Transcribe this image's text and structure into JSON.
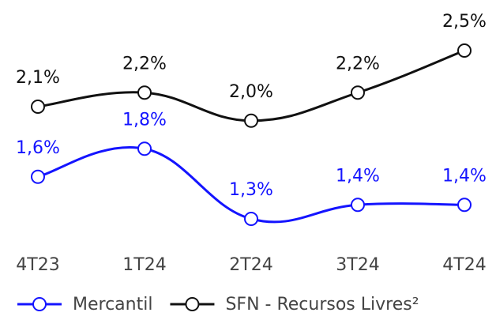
{
  "chart_data": {
    "type": "line",
    "categories": [
      "4T23",
      "1T24",
      "2T24",
      "3T24",
      "4T24"
    ],
    "series": [
      {
        "name": "Mercantil",
        "color": "#1414ff",
        "values": [
          1.6,
          1.8,
          1.3,
          1.4,
          1.4
        ],
        "value_labels": [
          "1,6%",
          "1,8%",
          "1,3%",
          "1,4%",
          "1,4%"
        ]
      },
      {
        "name": "SFN - Recursos Livres²",
        "color": "#111111",
        "values": [
          2.1,
          2.2,
          2.0,
          2.2,
          2.5
        ],
        "value_labels": [
          "2,1%",
          "2,2%",
          "2,0%",
          "2,2%",
          "2,5%"
        ]
      }
    ],
    "legend": "bottom"
  }
}
